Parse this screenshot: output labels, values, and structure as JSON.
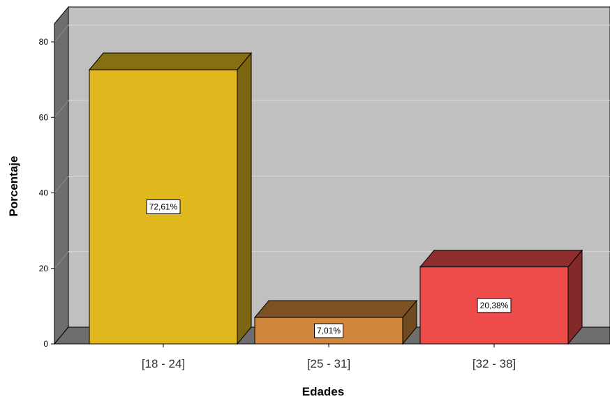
{
  "chart_data": {
    "type": "bar",
    "style": "3d",
    "categories": [
      "[18 - 24]",
      "[25 - 31]",
      "[32 - 38]"
    ],
    "values": [
      72.61,
      7.01,
      20.38
    ],
    "data_labels": [
      "72,61%",
      "7,01%",
      "20,38%"
    ],
    "colors": [
      "#e0b81e",
      "#d0873c",
      "#ee4b4b"
    ],
    "xlabel": "Edades",
    "ylabel": "Porcentaje",
    "ylim": [
      0,
      80
    ],
    "yticks": [
      "0",
      "20",
      "40",
      "60",
      "80"
    ],
    "grid": true,
    "background_color": "#c0c0c0"
  }
}
